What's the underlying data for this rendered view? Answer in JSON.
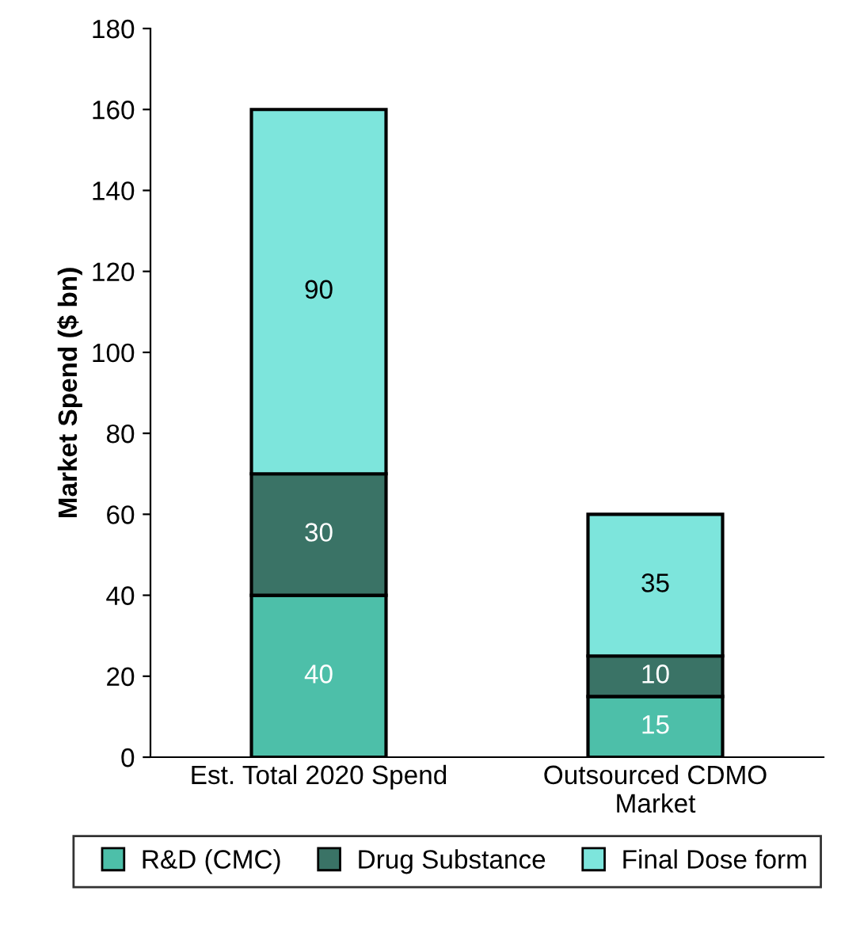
{
  "chart_data": {
    "type": "bar",
    "stacked": true,
    "ylabel": "Market Spend ($ bn)",
    "categories": [
      "Est. Total 2020 Spend",
      "Outsourced CDMO\nMarket"
    ],
    "series": [
      {
        "name": "R&D (CMC)",
        "color": "#4dbfa9",
        "values": [
          40,
          15
        ]
      },
      {
        "name": "Drug Substance",
        "color": "#3a7366",
        "values": [
          30,
          10
        ]
      },
      {
        "name": "Final Dose form",
        "color": "#7de5dc",
        "values": [
          90,
          35
        ]
      }
    ],
    "ylim": [
      0,
      180
    ],
    "yticks": [
      0,
      20,
      40,
      60,
      80,
      100,
      120,
      140,
      160,
      180
    ],
    "data_labels": true,
    "grid": false,
    "legend": "bottom"
  }
}
